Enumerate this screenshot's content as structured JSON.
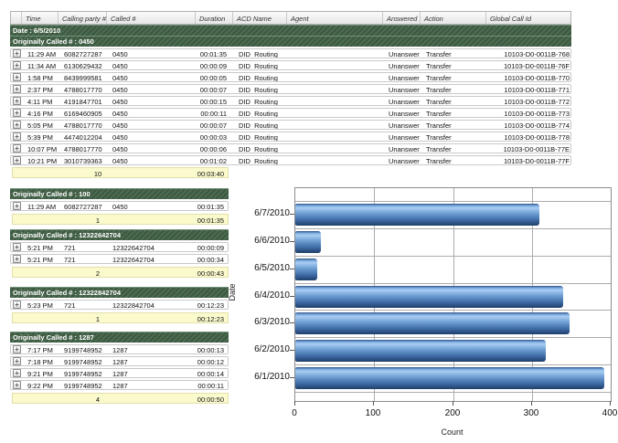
{
  "report": {
    "columns": [
      "",
      "Time",
      "Calling party #",
      "Called #",
      "Duration",
      "ACD Name",
      "Agent",
      "Answered",
      "Action",
      "Global Call Id"
    ],
    "date_header": "Date : 6/5/2010",
    "expand_icon": "+",
    "groups": [
      {
        "title": "Originally Called # : 0450",
        "rows": [
          {
            "time": "11:29 AM",
            "calling_party": "6082727287",
            "called": "0450",
            "duration": "00:01:35",
            "acd_name": "DID_Routing",
            "agent": "",
            "answered": "Unanswered",
            "action": "Transfer",
            "global_call_id": "10103-D0-0011B-768"
          },
          {
            "time": "11:34 AM",
            "calling_party": "6130629432",
            "called": "0450",
            "duration": "00:00:09",
            "acd_name": "DID_Routing",
            "agent": "",
            "answered": "Unanswered",
            "action": "Transfer",
            "global_call_id": "10103-D0-0011B-76F"
          },
          {
            "time": "1:58 PM",
            "calling_party": "8439999581",
            "called": "0450",
            "duration": "00:00:05",
            "acd_name": "DID_Routing",
            "agent": "",
            "answered": "Unanswered",
            "action": "Transfer",
            "global_call_id": "10103-D0-0011B-770"
          },
          {
            "time": "2:37 PM",
            "calling_party": "4788017770",
            "called": "0450",
            "duration": "00:00:07",
            "acd_name": "DID_Routing",
            "agent": "",
            "answered": "Unanswered",
            "action": "Transfer",
            "global_call_id": "10103-D0-0011B-771"
          },
          {
            "time": "4:11 PM",
            "calling_party": "4191847701",
            "called": "0450",
            "duration": "00:00:15",
            "acd_name": "DID_Routing",
            "agent": "",
            "answered": "Unanswered",
            "action": "Transfer",
            "global_call_id": "10103-D0-0011B-772"
          },
          {
            "time": "4:16 PM",
            "calling_party": "6169460905",
            "called": "0450",
            "duration": "00:00:11",
            "acd_name": "DID_Routing",
            "agent": "",
            "answered": "Unanswered",
            "action": "Transfer",
            "global_call_id": "10103-D0-0011B-773"
          },
          {
            "time": "5:05 PM",
            "calling_party": "4788017770",
            "called": "0450",
            "duration": "00:00:07",
            "acd_name": "DID_Routing",
            "agent": "",
            "answered": "Unanswered",
            "action": "Transfer",
            "global_call_id": "10103-D0-0011B-774"
          },
          {
            "time": "5:39 PM",
            "calling_party": "4474012204",
            "called": "0450",
            "duration": "00:00:03",
            "acd_name": "DID_Routing",
            "agent": "",
            "answered": "Unanswered",
            "action": "Transfer",
            "global_call_id": "10103-D0-0011B-778"
          },
          {
            "time": "10:07 PM",
            "calling_party": "4788017770",
            "called": "0450",
            "duration": "00:00:06",
            "acd_name": "DID_Routing",
            "agent": "",
            "answered": "Unanswered",
            "action": "Transfer",
            "global_call_id": "10103-D0-0011B-77E"
          },
          {
            "time": "10:21 PM",
            "calling_party": "3010739363",
            "called": "0450",
            "duration": "00:01:02",
            "acd_name": "DID_Routing",
            "agent": "",
            "answered": "Unanswered",
            "action": "Transfer",
            "global_call_id": "10103-D0-0011B-77F"
          }
        ],
        "summary": {
          "count": "10",
          "total_duration": "00:03:40"
        }
      },
      {
        "title": "Originally Called # : 100",
        "rows": [
          {
            "time": "11:29 AM",
            "calling_party": "6082727287",
            "called": "0450",
            "duration": "00:01:35"
          }
        ],
        "summary": {
          "count": "1",
          "total_duration": "00:01:35"
        }
      },
      {
        "title": "Originally Called # : 12322642704",
        "rows": [
          {
            "time": "5:21 PM",
            "calling_party": "721",
            "called": "12322642704",
            "duration": "00:00:09"
          },
          {
            "time": "5:21 PM",
            "calling_party": "721",
            "called": "12322642704",
            "duration": "00:00:34"
          }
        ],
        "summary": {
          "count": "2",
          "total_duration": "00:00:43"
        }
      },
      {
        "title": "Originally Called # : 12322842704",
        "rows": [
          {
            "time": "5:23 PM",
            "calling_party": "721",
            "called": "12322842704",
            "duration": "00:12:23"
          }
        ],
        "summary": {
          "count": "1",
          "total_duration": "00:12:23"
        }
      },
      {
        "title": "Originally Called # : 1287",
        "rows": [
          {
            "time": "7:17 PM",
            "calling_party": "9199748952",
            "called": "1287",
            "duration": "00:00:13"
          },
          {
            "time": "7:18 PM",
            "calling_party": "9199748952",
            "called": "1287",
            "duration": "00:00:12"
          },
          {
            "time": "9:21 PM",
            "calling_party": "9199748952",
            "called": "1287",
            "duration": "00:00:14"
          },
          {
            "time": "9:22 PM",
            "calling_party": "9199748952",
            "called": "1287",
            "duration": "00:00:11"
          }
        ],
        "summary": {
          "count": "4",
          "total_duration": "00:00:50"
        }
      }
    ]
  },
  "chart_data": {
    "type": "bar",
    "orientation": "horizontal",
    "categories": [
      "6/7/2010",
      "6/6/2010",
      "6/5/2010",
      "6/4/2010",
      "6/3/2010",
      "6/2/2010",
      "6/1/2010"
    ],
    "values": [
      310,
      33,
      28,
      340,
      348,
      318,
      392
    ],
    "title": "",
    "xlabel": "Count",
    "ylabel": "Date",
    "xlim": [
      0,
      400
    ],
    "xticks": [
      0,
      100,
      200,
      300,
      400
    ],
    "grid": true,
    "legend": false,
    "bar_color": "#5b8fd0"
  }
}
